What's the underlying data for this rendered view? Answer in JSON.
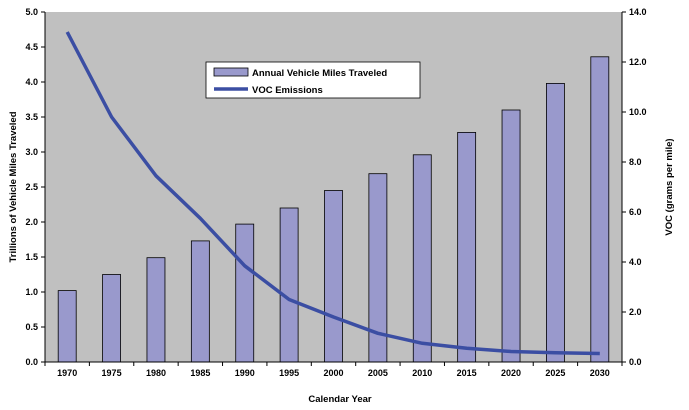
{
  "chart_data": {
    "type": "bar",
    "title": "",
    "categories": [
      "1970",
      "1975",
      "1980",
      "1985",
      "1990",
      "1995",
      "2000",
      "2005",
      "2010",
      "2015",
      "2020",
      "2025",
      "2030"
    ],
    "series": [
      {
        "name": "Annual Vehicle Miles Traveled",
        "type": "bar",
        "axis": "left",
        "color": "#9999cc",
        "values": [
          1.02,
          1.25,
          1.49,
          1.73,
          1.97,
          2.2,
          2.45,
          2.69,
          2.96,
          3.28,
          3.6,
          3.98,
          4.36
        ]
      },
      {
        "name": "VOC Emissions",
        "type": "line",
        "axis": "right",
        "color": "#3b4ea3",
        "values": [
          13.2,
          9.8,
          7.45,
          5.75,
          3.85,
          2.5,
          1.8,
          1.15,
          0.75,
          0.55,
          0.42,
          0.37,
          0.34
        ]
      }
    ],
    "xlabel": "Calendar Year",
    "ylabel": "Trillions of Vehicle Miles Traveled",
    "ylabel_right": "VOC (grams per mile)",
    "ylim": [
      0,
      5
    ],
    "ylim_right": [
      0,
      14
    ],
    "yticks": [
      "0.0",
      "0.5",
      "1.0",
      "1.5",
      "2.0",
      "2.5",
      "3.0",
      "3.5",
      "4.0",
      "4.5",
      "5.0"
    ],
    "yticks_right": [
      "0.0",
      "2.0",
      "4.0",
      "6.0",
      "8.0",
      "10.0",
      "12.0",
      "14.0"
    ],
    "plot_background": "#c0c0c0",
    "grid": false,
    "legend": "top-center"
  }
}
